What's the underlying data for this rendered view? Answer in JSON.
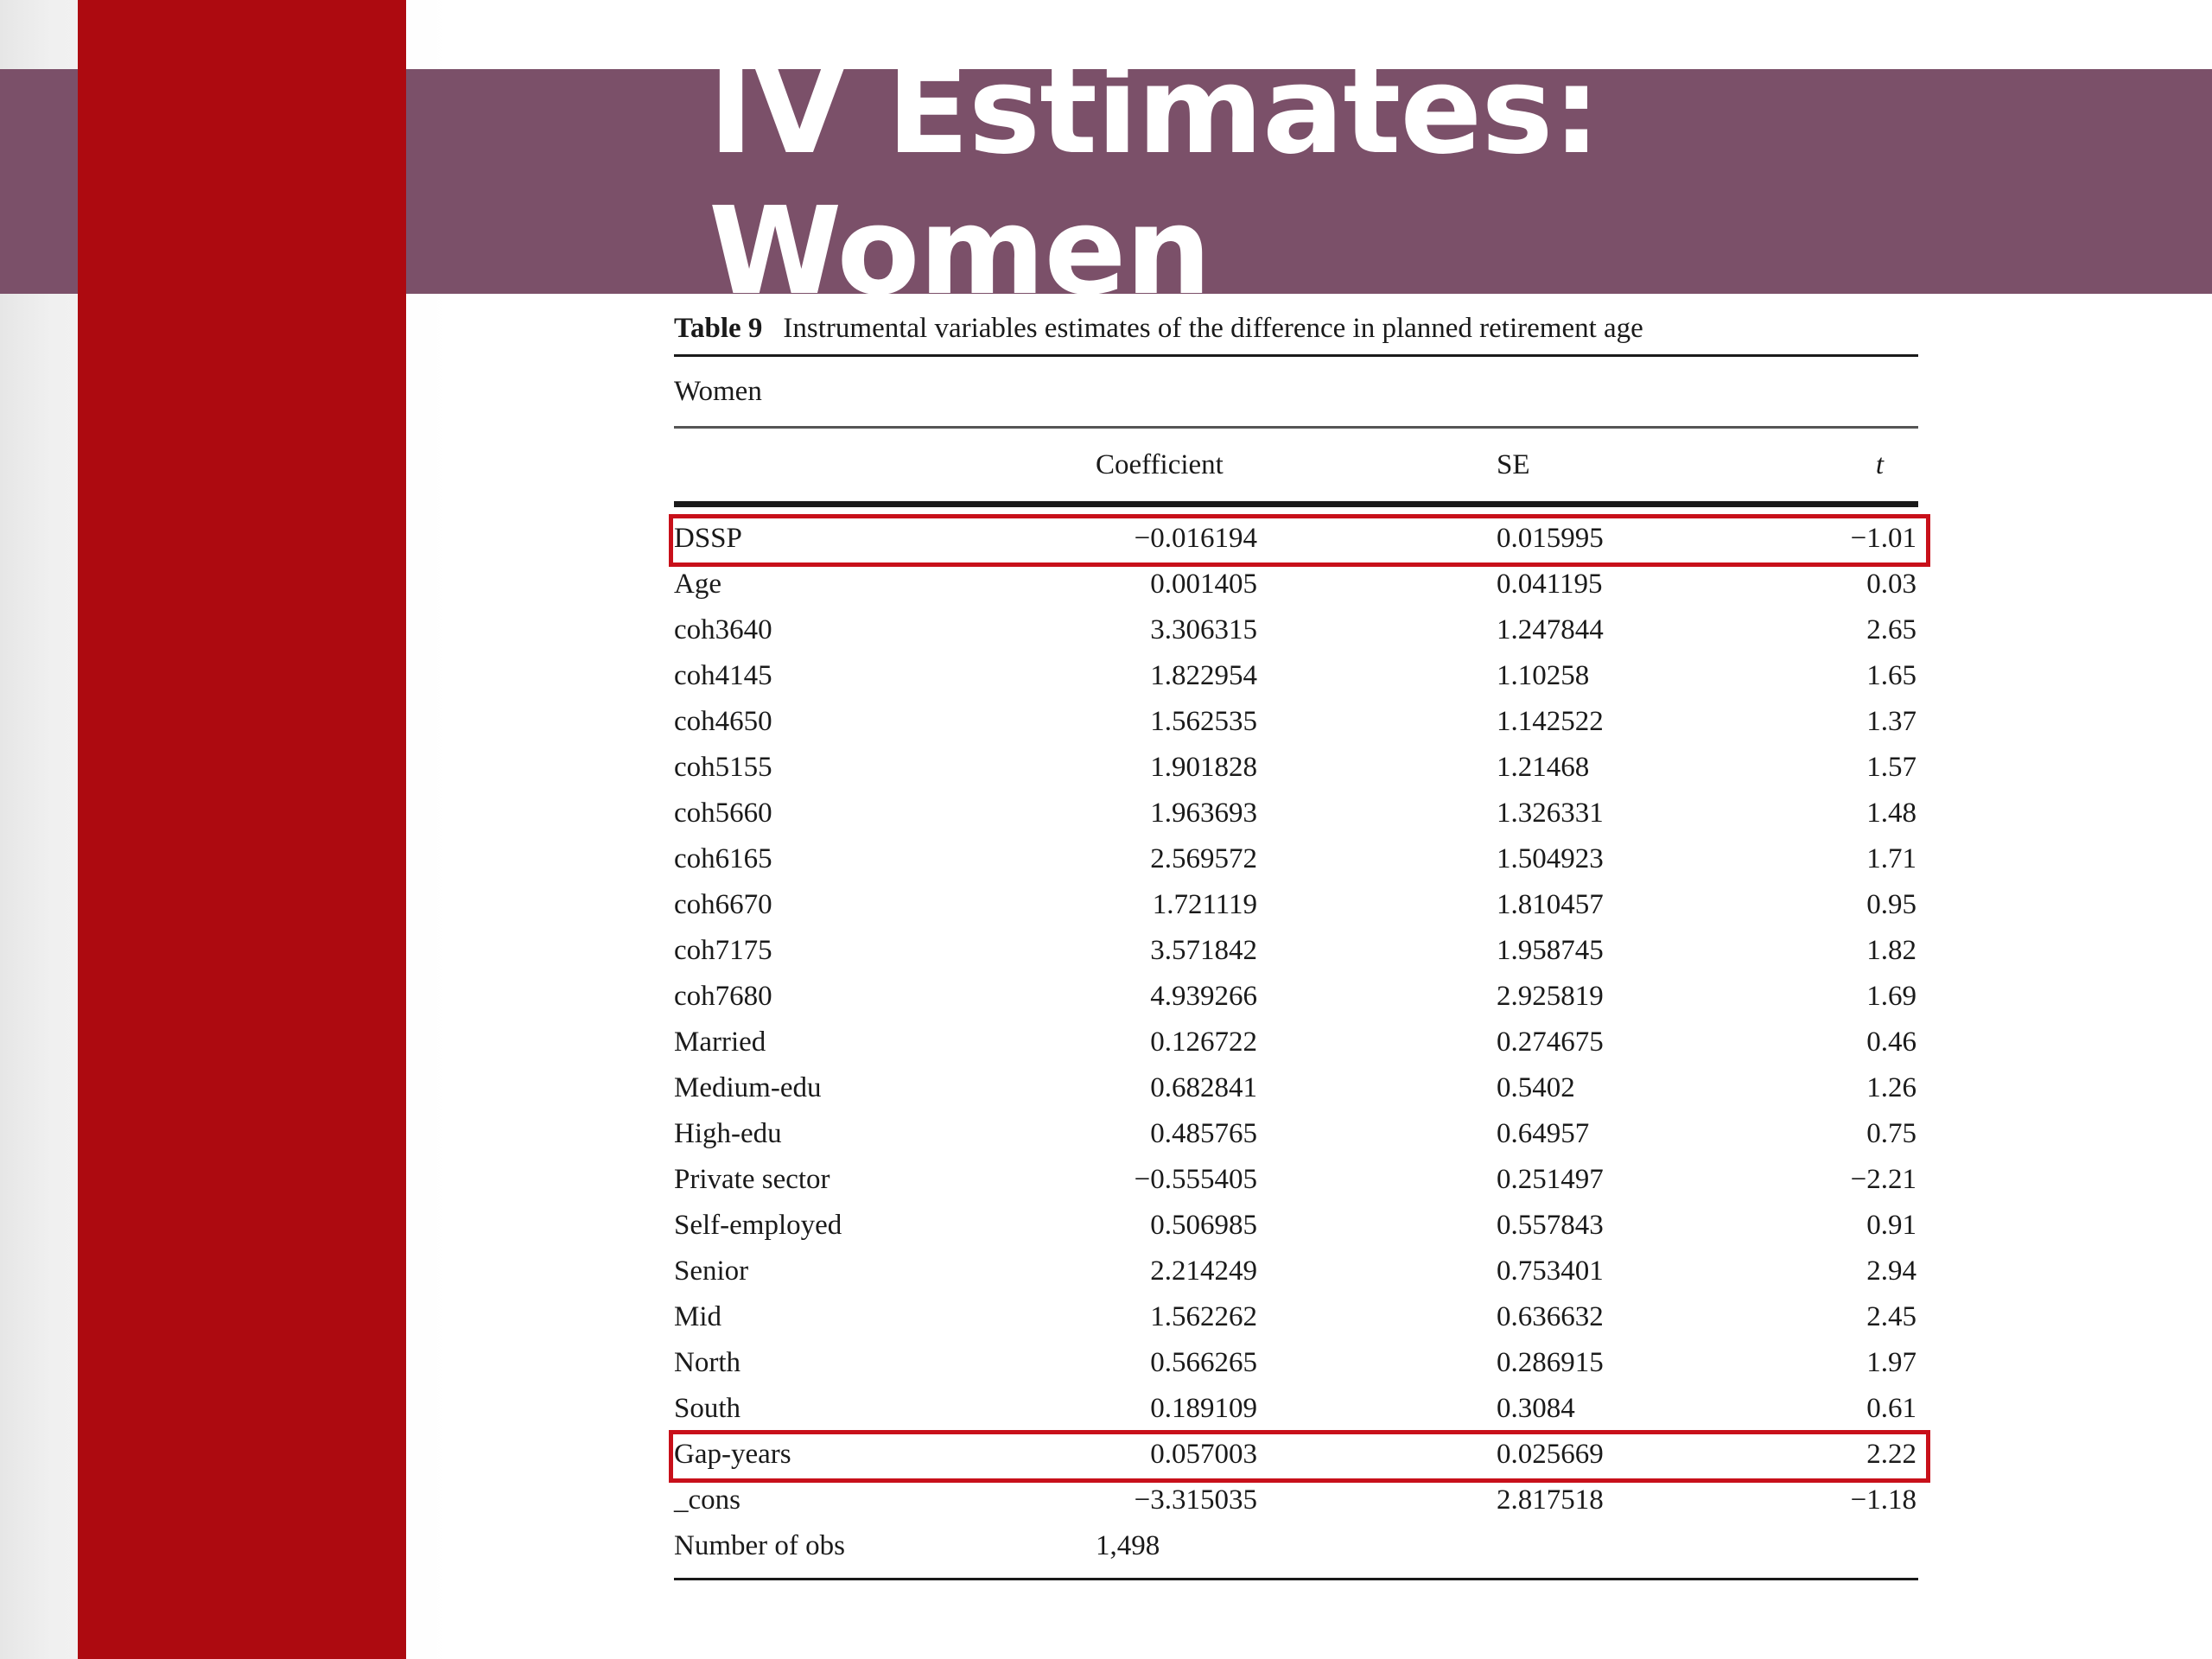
{
  "slide": {
    "title": "IV Estimates: Women",
    "colors": {
      "title_band": "#7b5069",
      "accent_bar": "#ad0a10",
      "highlight": "#c8101a"
    }
  },
  "table": {
    "label": "Table 9",
    "caption": "Instrumental variables estimates of the difference in planned retirement age",
    "group": "Women",
    "headers": {
      "coefficient": "Coefficient",
      "se": "SE",
      "t": "t"
    },
    "rows": [
      {
        "var": "DSSP",
        "coef": "−0.016194",
        "se": "0.015995",
        "t": "−1.01",
        "highlight": true
      },
      {
        "var": "Age",
        "coef": "0.001405",
        "se": "0.041195",
        "t": "0.03"
      },
      {
        "var": "coh3640",
        "coef": "3.306315",
        "se": "1.247844",
        "t": "2.65"
      },
      {
        "var": "coh4145",
        "coef": "1.822954",
        "se": "1.10258",
        "t": "1.65"
      },
      {
        "var": "coh4650",
        "coef": "1.562535",
        "se": "1.142522",
        "t": "1.37"
      },
      {
        "var": "coh5155",
        "coef": "1.901828",
        "se": "1.21468",
        "t": "1.57"
      },
      {
        "var": "coh5660",
        "coef": "1.963693",
        "se": "1.326331",
        "t": "1.48"
      },
      {
        "var": "coh6165",
        "coef": "2.569572",
        "se": "1.504923",
        "t": "1.71"
      },
      {
        "var": "coh6670",
        "coef": "1.721119",
        "se": "1.810457",
        "t": "0.95"
      },
      {
        "var": "coh7175",
        "coef": "3.571842",
        "se": "1.958745",
        "t": "1.82"
      },
      {
        "var": "coh7680",
        "coef": "4.939266",
        "se": "2.925819",
        "t": "1.69"
      },
      {
        "var": "Married",
        "coef": "0.126722",
        "se": "0.274675",
        "t": "0.46"
      },
      {
        "var": "Medium-edu",
        "coef": "0.682841",
        "se": "0.5402",
        "t": "1.26"
      },
      {
        "var": "High-edu",
        "coef": "0.485765",
        "se": "0.64957",
        "t": "0.75"
      },
      {
        "var": "Private sector",
        "coef": "−0.555405",
        "se": "0.251497",
        "t": "−2.21"
      },
      {
        "var": "Self-employed",
        "coef": "0.506985",
        "se": "0.557843",
        "t": "0.91"
      },
      {
        "var": "Senior",
        "coef": "2.214249",
        "se": "0.753401",
        "t": "2.94"
      },
      {
        "var": "Mid",
        "coef": "1.562262",
        "se": "0.636632",
        "t": "2.45"
      },
      {
        "var": "North",
        "coef": "0.566265",
        "se": "0.286915",
        "t": "1.97"
      },
      {
        "var": "South",
        "coef": "0.189109",
        "se": "0.3084",
        "t": "0.61"
      },
      {
        "var": "Gap-years",
        "coef": "0.057003",
        "se": "0.025669",
        "t": "2.22",
        "highlight": true
      },
      {
        "var": "_cons",
        "coef": "−3.315035",
        "se": "2.817518",
        "t": "−1.18"
      }
    ],
    "obs": {
      "label": "Number of obs",
      "value": "1,498"
    }
  }
}
